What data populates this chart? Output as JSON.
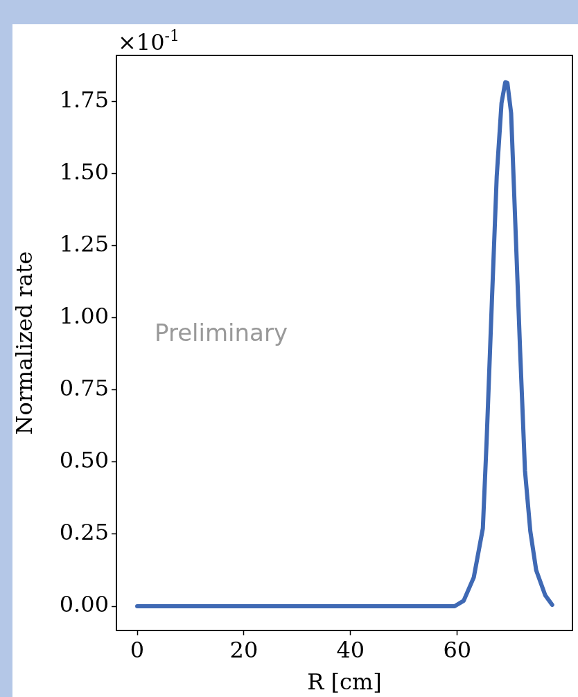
{
  "chart_data": {
    "type": "line",
    "xlabel": "R [cm]",
    "ylabel": "Normalized rate",
    "annotations": [
      "×10$^{-1}$",
      "Preliminary"
    ],
    "x": [
      0,
      10,
      20,
      30,
      40,
      50,
      59.5,
      61.2,
      63.1,
      64.8,
      65.5,
      66.5,
      67.4,
      68.3,
      69.0,
      69.4,
      70.1,
      70.8,
      71.8,
      72.7,
      73.7,
      74.8,
      76.5,
      77.8
    ],
    "series": [
      {
        "color": "#3f69b4",
        "values": [
          0,
          0,
          0,
          0,
          0,
          0,
          0,
          0.019,
          0.1,
          0.27,
          0.57,
          1.06,
          1.49,
          1.745,
          1.817,
          1.815,
          1.71,
          1.37,
          0.88,
          0.47,
          0.26,
          0.125,
          0.038,
          0.005
        ]
      }
    ],
    "xlim": [
      -3.9,
      81.6
    ],
    "xticks": [
      0,
      20,
      40,
      60
    ],
    "ylim": [
      -0.084,
      1.91
    ],
    "yticks": [
      {
        "value": 0,
        "label": "0.00"
      },
      {
        "value": 0.25,
        "label": "0.25"
      },
      {
        "value": 0.5,
        "label": "0.50"
      },
      {
        "value": 0.75,
        "label": "0.75"
      },
      {
        "value": 1,
        "label": "1.00"
      },
      {
        "value": 1.25,
        "label": "1.25"
      },
      {
        "value": 1.5,
        "label": "1.50"
      },
      {
        "value": 1.75,
        "label": "1.75"
      }
    ],
    "grid": false,
    "legend": false,
    "marker": "none",
    "line_style": "solid"
  }
}
